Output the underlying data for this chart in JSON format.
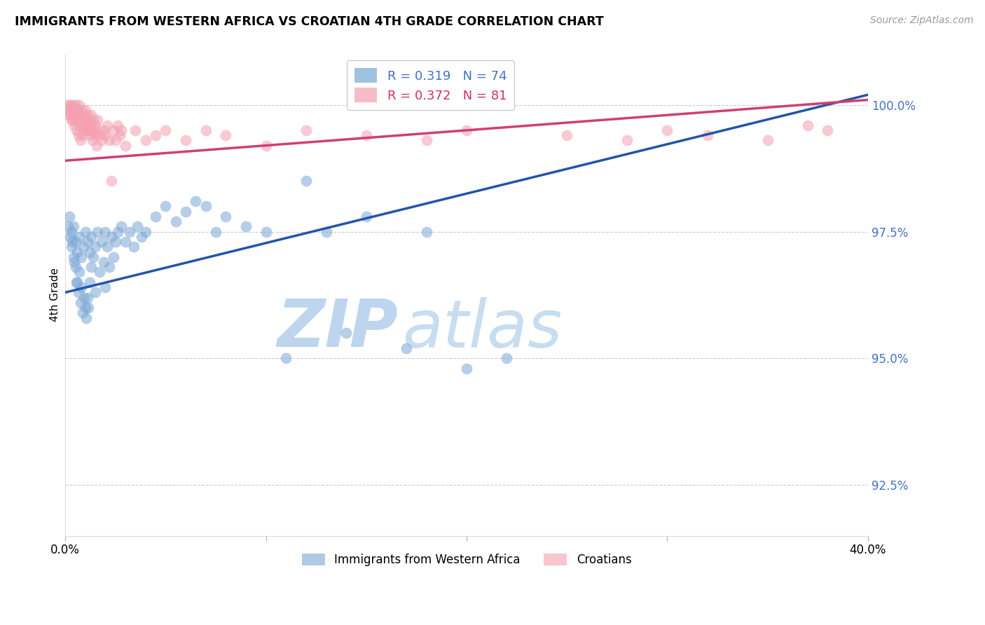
{
  "title": "IMMIGRANTS FROM WESTERN AFRICA VS CROATIAN 4TH GRADE CORRELATION CHART",
  "source": "Source: ZipAtlas.com",
  "ylabel": "4th Grade",
  "right_yticks": [
    92.5,
    95.0,
    97.5,
    100.0
  ],
  "right_ytick_labels": [
    "92.5%",
    "95.0%",
    "97.5%",
    "100.0%"
  ],
  "xmin": 0.0,
  "xmax": 40.0,
  "ymin": 91.5,
  "ymax": 101.0,
  "blue_R": 0.319,
  "blue_N": 74,
  "pink_R": 0.372,
  "pink_N": 81,
  "blue_color": "#7AA7D4",
  "pink_color": "#F4A0B0",
  "blue_line_color": "#2255AA",
  "pink_line_color": "#D04070",
  "legend_label_blue": "Immigrants from Western Africa",
  "legend_label_pink": "Croatians",
  "watermark_color": "#D8EAF8",
  "blue_x": [
    0.2,
    0.3,
    0.3,
    0.4,
    0.4,
    0.5,
    0.5,
    0.6,
    0.6,
    0.7,
    0.7,
    0.8,
    0.8,
    0.9,
    1.0,
    1.0,
    1.1,
    1.1,
    1.2,
    1.2,
    1.3,
    1.3,
    1.4,
    1.5,
    1.5,
    1.6,
    1.7,
    1.8,
    1.9,
    2.0,
    2.0,
    2.1,
    2.2,
    2.3,
    2.4,
    2.5,
    2.6,
    2.8,
    3.0,
    3.2,
    3.4,
    3.6,
    3.8,
    4.0,
    4.5,
    5.0,
    5.5,
    6.0,
    6.5,
    7.0,
    7.5,
    8.0,
    9.0,
    10.0,
    11.0,
    12.0,
    13.0,
    14.0,
    15.0,
    17.0,
    18.0,
    20.0,
    22.0,
    0.15,
    0.25,
    0.35,
    0.45,
    0.55,
    0.65,
    0.75,
    0.85,
    0.95,
    1.05,
    1.15
  ],
  "blue_y": [
    97.8,
    97.5,
    97.2,
    97.6,
    97.0,
    97.3,
    96.8,
    97.1,
    96.5,
    97.4,
    96.7,
    97.0,
    96.4,
    97.2,
    97.5,
    96.0,
    97.3,
    96.2,
    97.1,
    96.5,
    97.4,
    96.8,
    97.0,
    97.2,
    96.3,
    97.5,
    96.7,
    97.3,
    96.9,
    97.5,
    96.4,
    97.2,
    96.8,
    97.4,
    97.0,
    97.3,
    97.5,
    97.6,
    97.3,
    97.5,
    97.2,
    97.6,
    97.4,
    97.5,
    97.8,
    98.0,
    97.7,
    97.9,
    98.1,
    98.0,
    97.5,
    97.8,
    97.6,
    97.5,
    95.0,
    98.5,
    97.5,
    95.5,
    97.8,
    95.2,
    97.5,
    94.8,
    95.0,
    97.6,
    97.4,
    97.3,
    96.9,
    96.5,
    96.3,
    96.1,
    95.9,
    96.2,
    95.8,
    96.0
  ],
  "pink_x": [
    0.1,
    0.2,
    0.2,
    0.3,
    0.3,
    0.3,
    0.4,
    0.4,
    0.5,
    0.5,
    0.5,
    0.6,
    0.6,
    0.7,
    0.7,
    0.7,
    0.8,
    0.8,
    0.9,
    0.9,
    1.0,
    1.0,
    1.0,
    1.1,
    1.1,
    1.2,
    1.2,
    1.3,
    1.3,
    1.4,
    1.4,
    1.5,
    1.5,
    1.6,
    1.6,
    1.7,
    1.8,
    1.9,
    2.0,
    2.1,
    2.2,
    2.3,
    2.4,
    2.5,
    2.6,
    2.7,
    2.8,
    3.0,
    3.5,
    4.0,
    4.5,
    5.0,
    6.0,
    7.0,
    8.0,
    10.0,
    12.0,
    15.0,
    18.0,
    20.0,
    25.0,
    28.0,
    30.0,
    32.0,
    35.0,
    37.0,
    38.0,
    0.15,
    0.25,
    0.35,
    0.45,
    0.55,
    0.65,
    0.75,
    0.85,
    0.95,
    1.05,
    1.15,
    1.25,
    1.35,
    1.55
  ],
  "pink_y": [
    100.0,
    99.8,
    100.0,
    99.7,
    99.9,
    100.0,
    99.8,
    100.0,
    99.7,
    99.9,
    100.0,
    99.8,
    99.9,
    99.6,
    99.8,
    100.0,
    99.7,
    99.9,
    99.6,
    99.8,
    99.5,
    99.7,
    99.9,
    99.6,
    99.8,
    99.5,
    99.7,
    99.6,
    99.8,
    99.5,
    99.7,
    99.4,
    99.6,
    99.5,
    99.7,
    99.4,
    99.3,
    99.5,
    99.4,
    99.6,
    99.3,
    98.5,
    99.5,
    99.3,
    99.6,
    99.4,
    99.5,
    99.2,
    99.5,
    99.3,
    99.4,
    99.5,
    99.3,
    99.5,
    99.4,
    99.2,
    99.5,
    99.4,
    99.3,
    99.5,
    99.4,
    99.3,
    99.5,
    99.4,
    99.3,
    99.6,
    99.5,
    99.9,
    99.8,
    99.7,
    99.6,
    99.5,
    99.4,
    99.3,
    99.4,
    99.5,
    99.6,
    99.5,
    99.4,
    99.3,
    99.2
  ]
}
